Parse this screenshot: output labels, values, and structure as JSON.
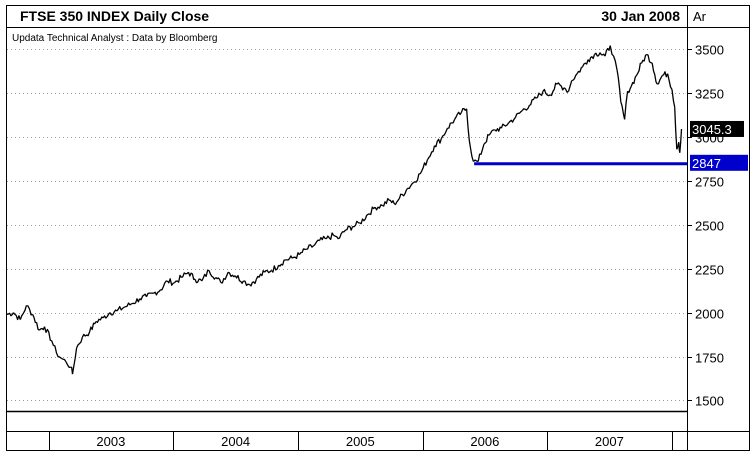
{
  "chart_data": {
    "type": "line",
    "title": "FTSE 350 INDEX Daily Close",
    "date": "30 Jan 2008",
    "corner_label": "Ar",
    "subtitle": "Updata Technical Analyst : Data by Bloomberg",
    "x_tick_labels": [
      "2003",
      "2004",
      "2005",
      "2006",
      "2007"
    ],
    "y_tick_labels": [
      "3500",
      "3250",
      "3000",
      "2750",
      "2500",
      "2250",
      "2000",
      "1750",
      "1500"
    ],
    "y_ticks": [
      3500,
      3250,
      3000,
      2750,
      2500,
      2250,
      2000,
      1750,
      1500
    ],
    "ylim": [
      1440,
      3620
    ],
    "xlim": [
      "2002-09-01",
      "2008-02-15"
    ],
    "grid": true,
    "current_value_label": "3045.3",
    "current_value": 3045.3,
    "support_level_label": "2847",
    "support_level": 2847,
    "support_line_start": "2006-06-01",
    "series": [
      {
        "x": [
          "2002-09-01",
          "2002-09-20",
          "2002-10-10",
          "2002-10-28",
          "2002-11-15",
          "2002-12-05",
          "2002-12-20",
          "2003-01-10",
          "2003-01-24",
          "2003-02-07",
          "2003-02-21",
          "2003-03-07",
          "2003-03-12",
          "2003-03-24",
          "2003-04-10",
          "2003-05-01",
          "2003-05-20",
          "2003-06-10",
          "2003-06-30",
          "2003-07-20",
          "2003-08-10",
          "2003-09-01",
          "2003-09-25",
          "2003-10-15",
          "2003-11-05",
          "2003-11-25",
          "2003-12-15",
          "2004-01-05",
          "2004-01-25",
          "2004-02-15",
          "2004-03-05",
          "2004-03-25",
          "2004-04-15",
          "2004-05-05",
          "2004-05-20",
          "2004-06-10",
          "2004-07-01",
          "2004-07-25",
          "2004-08-12",
          "2004-09-01",
          "2004-09-25",
          "2004-10-15",
          "2004-11-05",
          "2004-11-25",
          "2004-12-15",
          "2005-01-05",
          "2005-01-25",
          "2005-02-15",
          "2005-03-05",
          "2005-03-25",
          "2005-04-15",
          "2005-04-29",
          "2005-05-20",
          "2005-06-10",
          "2005-07-01",
          "2005-07-25",
          "2005-08-15",
          "2005-09-05",
          "2005-09-25",
          "2005-10-10",
          "2005-10-25",
          "2005-11-15",
          "2005-12-05",
          "2005-12-25",
          "2006-01-15",
          "2006-02-05",
          "2006-02-25",
          "2006-03-15",
          "2006-04-05",
          "2006-04-25",
          "2006-05-10",
          "2006-05-18",
          "2006-05-30",
          "2006-06-13",
          "2006-06-30",
          "2006-07-15",
          "2006-08-01",
          "2006-08-20",
          "2006-09-10",
          "2006-09-30",
          "2006-10-20",
          "2006-11-10",
          "2006-11-30",
          "2006-12-20",
          "2007-01-10",
          "2007-01-30",
          "2007-02-20",
          "2007-03-05",
          "2007-03-14",
          "2007-03-30",
          "2007-04-15",
          "2007-05-01",
          "2007-05-20",
          "2007-06-05",
          "2007-06-20",
          "2007-07-05",
          "2007-07-15",
          "2007-07-25",
          "2007-08-05",
          "2007-08-16",
          "2007-08-25",
          "2007-09-05",
          "2007-09-20",
          "2007-10-05",
          "2007-10-20",
          "2007-11-05",
          "2007-11-20",
          "2007-12-05",
          "2007-12-20",
          "2008-01-02",
          "2008-01-10",
          "2008-01-16",
          "2008-01-22",
          "2008-01-25",
          "2008-01-30"
        ],
        "values": [
          1990,
          2000,
          1960,
          2040,
          1990,
          1900,
          1920,
          1840,
          1770,
          1740,
          1720,
          1690,
          1650,
          1800,
          1860,
          1890,
          1950,
          1970,
          2000,
          2010,
          2030,
          2050,
          2080,
          2090,
          2110,
          2130,
          2180,
          2170,
          2200,
          2230,
          2190,
          2180,
          2240,
          2200,
          2170,
          2230,
          2210,
          2180,
          2160,
          2190,
          2230,
          2240,
          2270,
          2300,
          2310,
          2330,
          2360,
          2380,
          2410,
          2420,
          2440,
          2420,
          2470,
          2490,
          2510,
          2560,
          2600,
          2610,
          2640,
          2620,
          2650,
          2700,
          2740,
          2790,
          2870,
          2950,
          2990,
          3050,
          3100,
          3140,
          3160,
          2980,
          2860,
          2860,
          2960,
          3010,
          3040,
          3050,
          3080,
          3110,
          3150,
          3180,
          3220,
          3260,
          3240,
          3300,
          3280,
          3260,
          3320,
          3360,
          3400,
          3440,
          3470,
          3480,
          3460,
          3520,
          3460,
          3380,
          3200,
          3100,
          3260,
          3290,
          3350,
          3420,
          3470,
          3420,
          3300,
          3350,
          3360,
          3270,
          3170,
          2930,
          2970,
          2910,
          3045
        ]
      }
    ]
  }
}
